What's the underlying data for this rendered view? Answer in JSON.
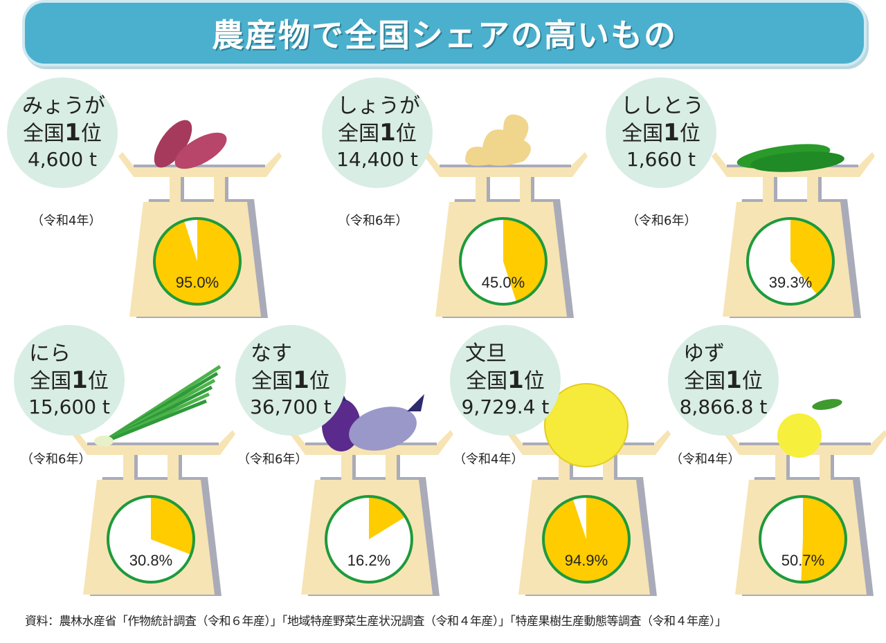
{
  "title": "農産物で全国シェアの高いもの",
  "rank_label_prefix": "全国",
  "rank_number": "1",
  "rank_label_suffix": "位",
  "colors": {
    "share": "#ffcc00",
    "rest": "#ffffff",
    "ring": "#1e9a3c",
    "scale": "#f7e4b4",
    "scale_shadow": "#a9abb8",
    "label_circle": "#d8ede4",
    "title_bar": "#4bb0cd"
  },
  "chart_data": {
    "type": "pie",
    "unit": "%",
    "items": [
      {
        "name": "みょうが",
        "amount": "4,600 t",
        "year": "（令和4年）",
        "share": 95.0,
        "share_label": "95.0%",
        "icon": "myoga-icon"
      },
      {
        "name": "しょうが",
        "amount": "14,400 t",
        "year": "（令和6年）",
        "share": 45.0,
        "share_label": "45.0%",
        "icon": "ginger-icon"
      },
      {
        "name": "ししとう",
        "amount": "1,660 t",
        "year": "（令和6年）",
        "share": 39.3,
        "share_label": "39.3%",
        "icon": "shishito-icon"
      },
      {
        "name": "にら",
        "amount": "15,600 t",
        "year": "（令和6年）",
        "share": 30.8,
        "share_label": "30.8%",
        "icon": "nira-icon"
      },
      {
        "name": "なす",
        "amount": "36,700 t",
        "year": "（令和6年）",
        "share": 16.2,
        "share_label": "16.2%",
        "icon": "eggplant-icon"
      },
      {
        "name": "文旦",
        "amount": "9,729.4 t",
        "year": "（令和4年）",
        "share": 94.9,
        "share_label": "94.9%",
        "icon": "buntan-icon"
      },
      {
        "name": "ゆず",
        "amount": "8,866.8 t",
        "year": "（令和4年）",
        "share": 50.7,
        "share_label": "50.7%",
        "icon": "yuzu-icon"
      }
    ]
  },
  "source": "資料：農林水産省「作物統計調査（令和６年産）」「地域特産野菜生産状況調査（令和４年産）」「特産果樹生産動態等調査（令和４年産）」"
}
